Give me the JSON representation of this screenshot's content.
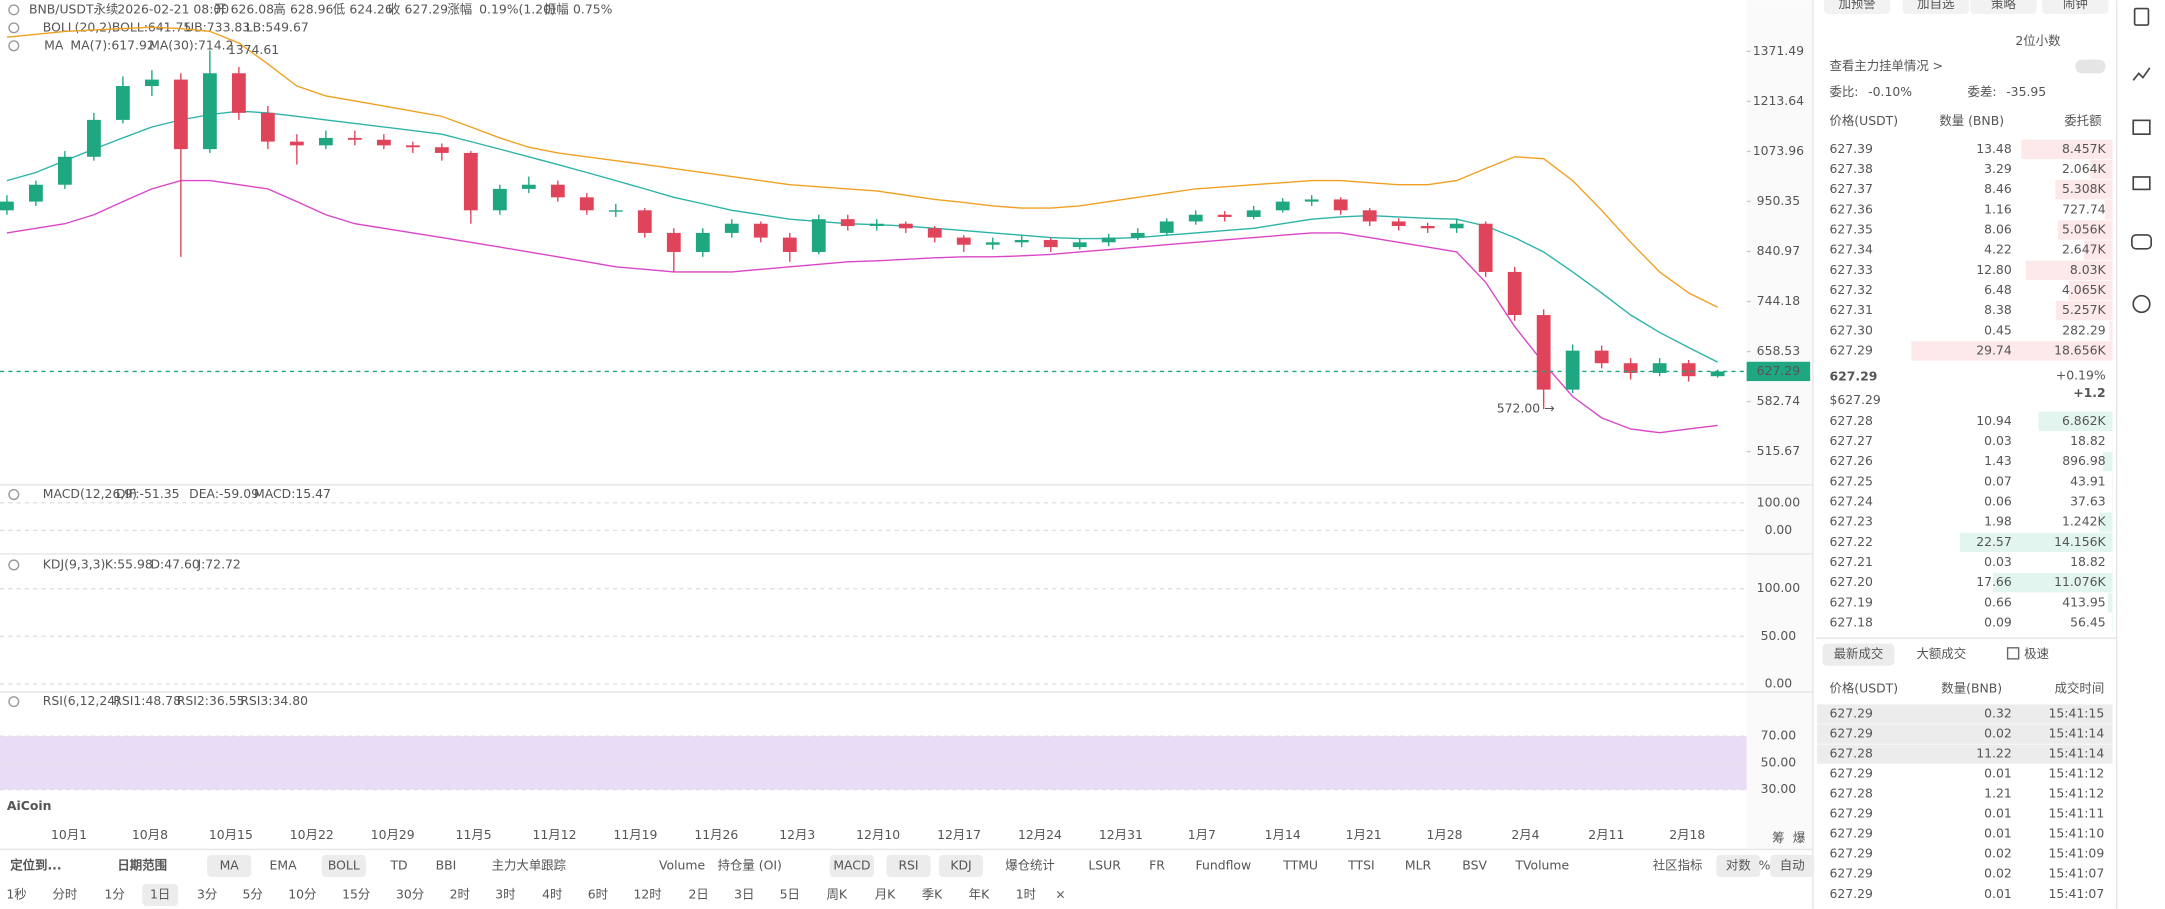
{
  "header": {
    "symbol": "BNB/USDT永续",
    "date": "2026-02-21 08:00",
    "open_label": "开",
    "open": "626.08",
    "high_label": "高",
    "high": "628.96",
    "low_label": "低",
    "low": "624.26",
    "close_label": "收",
    "close": "627.29",
    "change_label": "涨幅",
    "change": "0.19%(1.20)",
    "amp_label": "振幅",
    "amp": "0.75%"
  },
  "boll": {
    "label": "BOLL(20,2)",
    "mid": "BOLL:641.75",
    "ub": "UB:733.83",
    "lb": "LB:549.67"
  },
  "ma": {
    "label": "MA",
    "ma7": "MA(7):617.92",
    "ma30": "MA(30):714.2"
  },
  "price_chart": {
    "scale": "log",
    "ylim": [
      477,
      1554
    ],
    "yticks": [
      1371.49,
      1213.64,
      1073.96,
      950.35,
      840.97,
      744.18,
      658.53,
      582.74,
      515.67
    ],
    "current": 627.29,
    "current_label": "627.29",
    "high_note": "1374.61",
    "low_note": "572.00 →",
    "x_labels": [
      "10月1",
      "10月8",
      "10月15",
      "10月22",
      "10月29",
      "11月5",
      "11月12",
      "11月19",
      "11月26",
      "12月3",
      "12月10",
      "12月17",
      "12月24",
      "12月31",
      "1月7",
      "1月14",
      "1月21",
      "1月28",
      "2月4",
      "2月11",
      "2月18"
    ],
    "candles": [
      [
        930,
        965,
        920,
        950
      ],
      [
        950,
        1000,
        940,
        990
      ],
      [
        990,
        1075,
        980,
        1060
      ],
      [
        1060,
        1180,
        1050,
        1160
      ],
      [
        1160,
        1290,
        1150,
        1260
      ],
      [
        1260,
        1310,
        1230,
        1280
      ],
      [
        1280,
        1300,
        830,
        1080
      ],
      [
        1080,
        1374.61,
        1070,
        1300
      ],
      [
        1300,
        1320,
        1160,
        1180
      ],
      [
        1180,
        1200,
        1080,
        1100
      ],
      [
        1100,
        1120,
        1040,
        1090
      ],
      [
        1090,
        1130,
        1080,
        1110
      ],
      [
        1110,
        1130,
        1090,
        1105
      ],
      [
        1105,
        1120,
        1080,
        1090
      ],
      [
        1090,
        1100,
        1070,
        1085
      ],
      [
        1085,
        1095,
        1050,
        1070
      ],
      [
        1070,
        1075,
        900,
        930
      ],
      [
        930,
        990,
        920,
        980
      ],
      [
        980,
        1010,
        970,
        990
      ],
      [
        990,
        1000,
        950,
        960
      ],
      [
        960,
        970,
        920,
        930
      ],
      [
        930,
        945,
        915,
        930
      ],
      [
        930,
        935,
        870,
        880
      ],
      [
        880,
        890,
        800,
        840
      ],
      [
        840,
        890,
        830,
        880
      ],
      [
        880,
        910,
        870,
        900
      ],
      [
        900,
        905,
        860,
        870
      ],
      [
        870,
        880,
        820,
        840
      ],
      [
        840,
        920,
        835,
        910
      ],
      [
        910,
        920,
        885,
        895
      ],
      [
        895,
        910,
        885,
        900
      ],
      [
        900,
        905,
        880,
        890
      ],
      [
        890,
        895,
        860,
        870
      ],
      [
        870,
        875,
        840,
        855
      ],
      [
        855,
        870,
        845,
        860
      ],
      [
        860,
        875,
        850,
        865
      ],
      [
        865,
        870,
        840,
        850
      ],
      [
        850,
        868,
        845,
        860
      ],
      [
        860,
        878,
        852,
        870
      ],
      [
        870,
        890,
        865,
        880
      ],
      [
        880,
        912,
        875,
        905
      ],
      [
        905,
        930,
        898,
        920
      ],
      [
        920,
        928,
        905,
        915
      ],
      [
        915,
        940,
        910,
        930
      ],
      [
        930,
        958,
        925,
        950
      ],
      [
        950,
        965,
        940,
        955
      ],
      [
        955,
        960,
        920,
        930
      ],
      [
        930,
        935,
        895,
        905
      ],
      [
        905,
        912,
        885,
        895
      ],
      [
        895,
        902,
        880,
        890
      ],
      [
        890,
        910,
        880,
        900
      ],
      [
        900,
        905,
        790,
        800
      ],
      [
        800,
        810,
        710,
        720
      ],
      [
        720,
        730,
        572,
        600
      ],
      [
        600,
        670,
        595,
        660
      ],
      [
        660,
        668,
        632,
        640
      ],
      [
        640,
        648,
        615,
        625
      ],
      [
        625,
        648,
        620,
        640
      ],
      [
        640,
        645,
        612,
        620
      ],
      [
        620,
        630,
        618,
        627.29
      ]
    ],
    "boll_upper": [
      1420,
      1430,
      1440,
      1445,
      1450,
      1455,
      1450,
      1440,
      1400,
      1330,
      1260,
      1230,
      1215,
      1200,
      1185,
      1170,
      1140,
      1110,
      1085,
      1070,
      1060,
      1050,
      1040,
      1030,
      1020,
      1010,
      1000,
      990,
      985,
      980,
      975,
      965,
      955,
      948,
      940,
      935,
      935,
      940,
      950,
      960,
      970,
      980,
      985,
      990,
      995,
      1000,
      1000,
      995,
      990,
      990,
      1000,
      1030,
      1060,
      1055,
      1000,
      930,
      860,
      800,
      760,
      733.83
    ],
    "boll_mid": [
      1000,
      1020,
      1050,
      1080,
      1110,
      1140,
      1160,
      1175,
      1185,
      1180,
      1170,
      1160,
      1150,
      1140,
      1130,
      1120,
      1100,
      1080,
      1060,
      1040,
      1020,
      1000,
      980,
      960,
      945,
      930,
      920,
      910,
      905,
      900,
      898,
      895,
      890,
      885,
      880,
      875,
      870,
      868,
      868,
      870,
      875,
      880,
      885,
      890,
      900,
      910,
      915,
      918,
      915,
      912,
      910,
      895,
      870,
      840,
      800,
      760,
      720,
      690,
      665,
      641.75
    ],
    "boll_lower": [
      880,
      890,
      900,
      920,
      950,
      980,
      1000,
      1000,
      990,
      980,
      950,
      920,
      900,
      890,
      880,
      870,
      860,
      850,
      840,
      830,
      820,
      810,
      805,
      800,
      800,
      800,
      805,
      810,
      815,
      820,
      822,
      825,
      828,
      830,
      830,
      832,
      835,
      840,
      845,
      850,
      855,
      860,
      865,
      870,
      875,
      880,
      880,
      870,
      860,
      850,
      840,
      780,
      700,
      640,
      590,
      560,
      545,
      540,
      545,
      549.67
    ]
  },
  "macd": {
    "title": "MACD(12,26,9)",
    "dif": "DIF:-51.35",
    "dea": "DEA:-59.09",
    "macd": "MACD:15.47",
    "ylim": [
      -80,
      160
    ],
    "yticks": [
      {
        "value": 100,
        "label": "100.00"
      },
      {
        "value": 0,
        "label": "0.00"
      }
    ]
  },
  "kdj": {
    "title": "KDJ(9,3,3)",
    "k": "K:55.98",
    "d": "D:47.60",
    "j": "J:72.72",
    "ylim": [
      -7,
      135
    ],
    "yticks": [
      {
        "value": 100,
        "label": "100.00"
      },
      {
        "value": 50,
        "label": "50.00"
      },
      {
        "value": 0,
        "label": "0.00"
      }
    ]
  },
  "rsi": {
    "title": "RSI(6,12,24)",
    "rsi1": "RSI1:48.78",
    "rsi2": "RSI2:36.55",
    "rsi3": "RSI3:34.80",
    "ylim": [
      6,
      102
    ],
    "yticks": [
      {
        "value": 70,
        "label": "70.00"
      },
      {
        "value": 50,
        "label": "50.00"
      },
      {
        "value": 30,
        "label": "30.00"
      }
    ]
  },
  "logo": "AiCoin",
  "axis_tools": [
    "筹",
    "爆"
  ],
  "toolbar": {
    "indicators": [
      {
        "label": "定位到...",
        "active": false
      },
      {
        "label": "日期范围",
        "active": false
      },
      {
        "label": "MA",
        "active": true
      },
      {
        "label": "EMA",
        "active": false
      },
      {
        "label": "BOLL",
        "active": true
      },
      {
        "label": "TD",
        "active": false
      },
      {
        "label": "BBI",
        "active": false
      },
      {
        "label": "主力大单跟踪",
        "active": false
      },
      {
        "label": "Volume",
        "active": false
      },
      {
        "label": "持仓量 (OI)",
        "active": false
      },
      {
        "label": "MACD",
        "active": true
      },
      {
        "label": "RSI",
        "active": true
      },
      {
        "label": "KDJ",
        "active": true
      },
      {
        "label": "爆仓统计",
        "active": false
      },
      {
        "label": "LSUR",
        "active": false
      },
      {
        "label": "FR",
        "active": false
      },
      {
        "label": "Fundflow",
        "active": false
      },
      {
        "label": "TTMU",
        "active": false
      },
      {
        "label": "TTSI",
        "active": false
      },
      {
        "label": "MLR",
        "active": false
      },
      {
        "label": "BSV",
        "active": false
      },
      {
        "label": "TVolume",
        "active": false
      },
      {
        "label": "社区指标",
        "active": false
      },
      {
        "label": "对数",
        "active": true
      },
      {
        "label": "%",
        "active": false
      },
      {
        "label": "自动",
        "active": true
      }
    ],
    "intervals": [
      {
        "label": "1秒",
        "active": false
      },
      {
        "label": "分时",
        "active": false
      },
      {
        "label": "1分",
        "active": false
      },
      {
        "label": "1日",
        "active": true
      },
      {
        "label": "3分",
        "active": false
      },
      {
        "label": "5分",
        "active": false
      },
      {
        "label": "10分",
        "active": false
      },
      {
        "label": "15分",
        "active": false
      },
      {
        "label": "30分",
        "active": false
      },
      {
        "label": "2时",
        "active": false
      },
      {
        "label": "3时",
        "active": false
      },
      {
        "label": "4时",
        "active": false
      },
      {
        "label": "6时",
        "active": false
      },
      {
        "label": "12时",
        "active": false
      },
      {
        "label": "2日",
        "active": false
      },
      {
        "label": "3日",
        "active": false
      },
      {
        "label": "5日",
        "active": false
      },
      {
        "label": "周K",
        "active": false
      },
      {
        "label": "月K",
        "active": false
      },
      {
        "label": "季K",
        "active": false
      },
      {
        "label": "年K",
        "active": false
      },
      {
        "label": "1时",
        "active": false
      },
      {
        "label": "×",
        "active": false
      }
    ]
  },
  "side_panel": {
    "buttons": [
      "加预警",
      "加自选",
      "策略",
      "闹钟"
    ],
    "decimals": "2位小数",
    "main_orders": "查看主力挂单情况 >",
    "ratio_label": "委比:",
    "ratio": "-0.10%",
    "diff_label": "委差:",
    "diff": "-35.95",
    "book_header": [
      "价格(USDT)",
      "数量 (BNB)",
      "委托额"
    ],
    "asks": [
      [
        "627.39",
        "13.48",
        "8.457K"
      ],
      [
        "627.38",
        "3.29",
        "2.064K"
      ],
      [
        "627.37",
        "8.46",
        "5.308K"
      ],
      [
        "627.36",
        "1.16",
        "727.74"
      ],
      [
        "627.35",
        "8.06",
        "5.056K"
      ],
      [
        "627.34",
        "4.22",
        "2.647K"
      ],
      [
        "627.33",
        "12.80",
        "8.03K"
      ],
      [
        "627.32",
        "6.48",
        "4.065K"
      ],
      [
        "627.31",
        "8.38",
        "5.257K"
      ],
      [
        "627.30",
        "0.45",
        "282.29"
      ],
      [
        "627.29",
        "29.74",
        "18.656K"
      ]
    ],
    "last_price": "627.29",
    "last_usd": "$627.29",
    "last_pct": "+0.19%",
    "last_change": "+1.2",
    "bids": [
      [
        "627.28",
        "10.94",
        "6.862K"
      ],
      [
        "627.27",
        "0.03",
        "18.82"
      ],
      [
        "627.26",
        "1.43",
        "896.98"
      ],
      [
        "627.25",
        "0.07",
        "43.91"
      ],
      [
        "627.24",
        "0.06",
        "37.63"
      ],
      [
        "627.23",
        "1.98",
        "1.242K"
      ],
      [
        "627.22",
        "22.57",
        "14.156K"
      ],
      [
        "627.21",
        "0.03",
        "18.82"
      ],
      [
        "627.20",
        "17.66",
        "11.076K"
      ],
      [
        "627.19",
        "0.66",
        "413.95"
      ],
      [
        "627.18",
        "0.09",
        "56.45"
      ]
    ],
    "tabs": [
      "最新成交",
      "大额成交",
      "极速"
    ],
    "trade_header": [
      "价格(USDT)",
      "数量(BNB)",
      "成交时间"
    ],
    "trades": [
      {
        "price": "627.29",
        "qty": "0.32",
        "time": "15:41:15",
        "side": "buy"
      },
      {
        "price": "627.29",
        "qty": "0.02",
        "time": "15:41:14",
        "side": "buy"
      },
      {
        "price": "627.28",
        "qty": "11.22",
        "time": "15:41:14",
        "side": "sell"
      },
      {
        "price": "627.29",
        "qty": "0.01",
        "time": "15:41:12",
        "side": "buy"
      },
      {
        "price": "627.28",
        "qty": "1.21",
        "time": "15:41:12",
        "side": "sell"
      },
      {
        "price": "627.29",
        "qty": "0.01",
        "time": "15:41:11",
        "side": "buy"
      },
      {
        "price": "627.29",
        "qty": "0.01",
        "time": "15:41:10",
        "side": "buy"
      },
      {
        "price": "627.29",
        "qty": "0.02",
        "time": "15:41:09",
        "side": "buy"
      },
      {
        "price": "627.29",
        "qty": "0.02",
        "time": "15:41:07",
        "side": "buy"
      },
      {
        "price": "627.29",
        "qty": "0.01",
        "time": "15:41:07",
        "side": "buy"
      }
    ]
  }
}
